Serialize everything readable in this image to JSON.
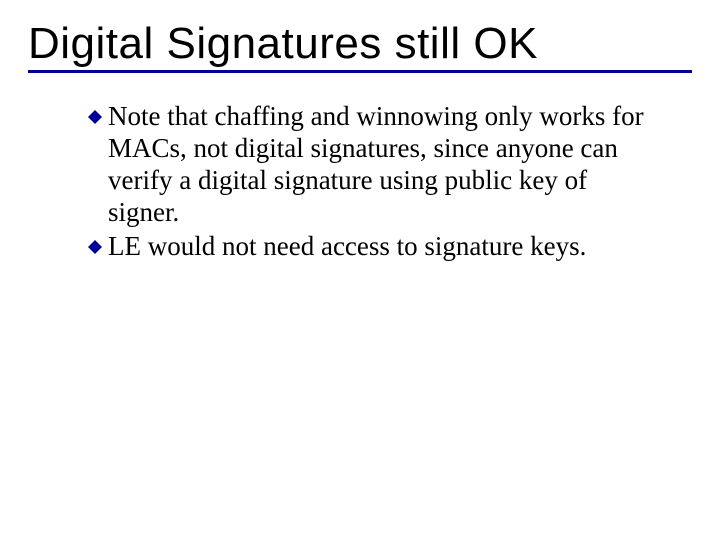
{
  "slide": {
    "title": "Digital Signatures still OK",
    "title_fontsize": 44,
    "title_color": "#000000",
    "underline_color": "#000099",
    "underline_width": 3,
    "background_color": "#ffffff",
    "bullets": [
      {
        "text": "Note that chaffing and winnowing only works for MACs, not digital signatures, since anyone can verify a digital signature using public key of signer."
      },
      {
        "text": "LE would not need access to signature keys."
      }
    ],
    "body_fontsize": 27,
    "body_color": "#000000",
    "bullet_marker": {
      "type": "diamond",
      "color": "#000099",
      "size": 14
    }
  }
}
